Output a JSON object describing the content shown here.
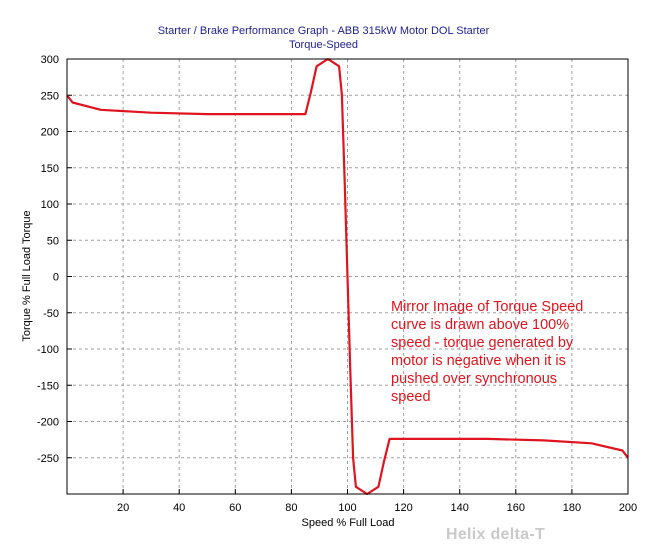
{
  "chart_data": {
    "type": "line",
    "title": "Starter / Brake Performance Graph - ABB 315kW Motor DOL Starter",
    "subtitle": "Torque-Speed",
    "xlabel": "Speed % Full Load",
    "ylabel": "Torque % Full Load Torque",
    "xlim": [
      0,
      200
    ],
    "ylim": [
      -300,
      300
    ],
    "xticks": [
      20,
      40,
      60,
      80,
      100,
      120,
      140,
      160,
      180,
      200
    ],
    "yticks": [
      300,
      250,
      200,
      150,
      100,
      50,
      0,
      -50,
      -100,
      -150,
      -200,
      -250
    ],
    "grid": true,
    "line_color": "#e0141e",
    "series": [
      {
        "x": [
          0,
          2,
          12,
          30,
          50,
          70,
          85,
          87,
          89,
          93,
          97,
          98,
          99,
          100,
          101,
          102,
          103,
          107,
          111,
          113,
          115,
          130,
          150,
          170,
          187,
          198,
          200
        ],
        "y": [
          250,
          240,
          230,
          226,
          224,
          224,
          224,
          255,
          290,
          300,
          290,
          250,
          130,
          0,
          -130,
          -250,
          -290,
          -300,
          -290,
          -255,
          -224,
          -224,
          -224,
          -226,
          -230,
          -240,
          -250
        ]
      }
    ]
  },
  "annotation": "Mirror Image of Torque Speed\ncurve is drawn above 100%\nspeed - torque generated by\nmotor is negative when it is\npushed over synchronous\nspeed",
  "watermark": "Helix delta-T"
}
